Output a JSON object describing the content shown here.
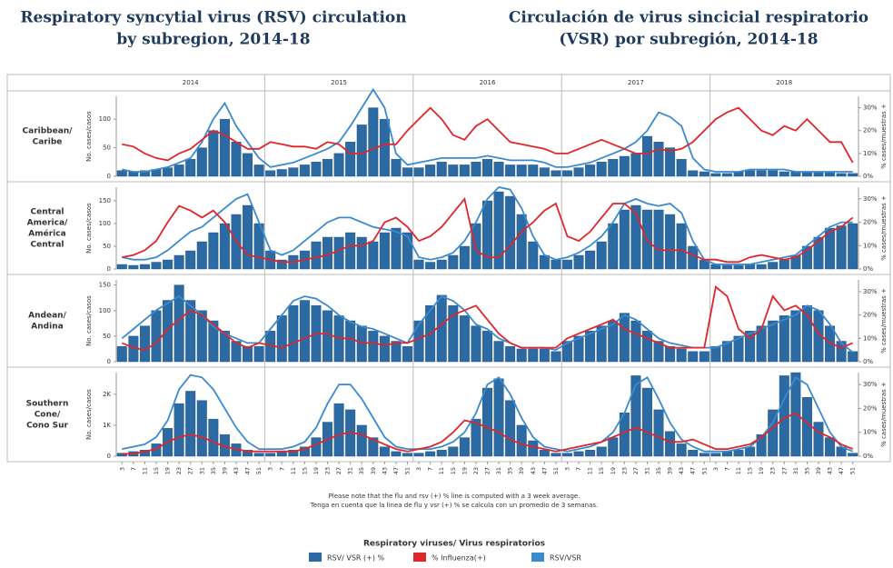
{
  "title_en": [
    "Respiratory syncytial virus (RSV) circulation",
    "by subregion, 2014-18"
  ],
  "title_es": [
    "Circulación de virus sincicial respiratorio",
    "(VSR) por subregión, 2014-18"
  ],
  "years": [
    "2014",
    "2015",
    "2016",
    "2017",
    "2018"
  ],
  "notes": [
    "Please note that the flu and rsv (+) % line is computed with a 3 week average.",
    "Tenga en cuenta que la linea de flu y vsr (+) % se calcula con un promedio de 3 semanas."
  ],
  "legend": {
    "title": "Respiratory viruses/ Virus respiratorios",
    "items": [
      {
        "name": "RSV/ VSR (+) %",
        "color": "#2b6aa3"
      },
      {
        "name": "% Influenza(+)",
        "color": "#e0262b"
      },
      {
        "name": "RSV/VSR",
        "color": "#3b8ad0"
      }
    ]
  },
  "categories": [
    "3",
    "7",
    "11",
    "15",
    "19",
    "23",
    "27",
    "31",
    "35",
    "39",
    "43",
    "47",
    "51",
    "3",
    "7",
    "11",
    "15",
    "19",
    "23",
    "27",
    "31",
    "35",
    "39",
    "43",
    "47",
    "51",
    "3",
    "7",
    "11",
    "15",
    "19",
    "23",
    "27",
    "31",
    "35",
    "39",
    "43",
    "47",
    "51",
    "3",
    "7",
    "11",
    "15",
    "19",
    "23",
    "27",
    "31",
    "35",
    "39",
    "43",
    "47",
    "51",
    "3",
    "7",
    "11",
    "15",
    "19",
    "23",
    "27",
    "31",
    "35",
    "39",
    "43",
    "47",
    "51"
  ],
  "chart_data": [
    {
      "type": "bar",
      "label": [
        "Caribbean/",
        "Caribe"
      ],
      "ylabel": "No. cases/casos",
      "y2label": "% cases/muestras +",
      "ylim": [
        0,
        140
      ],
      "yticks": [
        0,
        50,
        100
      ],
      "y2lim": [
        0,
        35
      ],
      "y2ticks": [
        {
          "value": 0,
          "label": "0%"
        },
        {
          "value": 10,
          "label": "10%"
        },
        {
          "value": 20,
          "label": "20%"
        },
        {
          "value": 30,
          "label": "30%"
        }
      ],
      "series": [
        {
          "color": "#2b6aa3",
          "values": [
            10,
            8,
            10,
            12,
            15,
            20,
            30,
            50,
            80,
            100,
            60,
            40,
            20,
            10,
            12,
            15,
            20,
            25,
            30,
            40,
            60,
            90,
            120,
            100,
            30,
            15,
            15,
            20,
            25,
            20,
            20,
            25,
            30,
            25,
            20,
            20,
            20,
            15,
            10,
            10,
            15,
            20,
            25,
            30,
            35,
            40,
            70,
            60,
            50,
            30,
            10,
            8,
            5,
            5,
            8,
            10,
            10,
            10,
            8,
            8,
            8,
            8,
            8,
            5,
            5
          ]
        },
        {
          "color": "#3b8ad0",
          "axis": "y2",
          "values": [
            3,
            2,
            2,
            3,
            4,
            6,
            8,
            15,
            25,
            32,
            22,
            15,
            8,
            4,
            5,
            6,
            8,
            10,
            12,
            15,
            22,
            30,
            38,
            30,
            10,
            5,
            6,
            7,
            8,
            8,
            8,
            8,
            9,
            8,
            7,
            7,
            7,
            6,
            4,
            4,
            5,
            6,
            8,
            10,
            12,
            15,
            20,
            28,
            26,
            22,
            8,
            3,
            2,
            2,
            2,
            3,
            3,
            3,
            3,
            2,
            2,
            2,
            2,
            2,
            2
          ]
        },
        {
          "color": "#e0262b",
          "axis": "y2",
          "values": [
            14,
            13,
            10,
            8,
            7,
            10,
            12,
            16,
            20,
            18,
            15,
            12,
            12,
            15,
            14,
            13,
            13,
            12,
            15,
            14,
            10,
            10,
            12,
            14,
            14,
            20,
            25,
            30,
            25,
            18,
            16,
            22,
            25,
            20,
            15,
            14,
            13,
            12,
            10,
            10,
            12,
            14,
            16,
            14,
            12,
            10,
            10,
            12,
            11,
            12,
            15,
            20,
            25,
            28,
            30,
            25,
            20,
            18,
            22,
            20,
            25,
            20,
            15,
            15,
            6
          ]
        }
      ]
    },
    {
      "type": "bar",
      "label": [
        "Central",
        "America/",
        "América",
        "Central"
      ],
      "ylabel": "No. cases/casos",
      "y2label": "% cases/muestras +",
      "ylim": [
        0,
        180
      ],
      "yticks": [
        0,
        50,
        100,
        150
      ],
      "y2lim": [
        0,
        35
      ],
      "y2ticks": [
        {
          "value": 0,
          "label": "0%"
        },
        {
          "value": 10,
          "label": "10%"
        },
        {
          "value": 20,
          "label": "20%"
        },
        {
          "value": 30,
          "label": "30%"
        }
      ],
      "series": [
        {
          "color": "#2b6aa3",
          "values": [
            10,
            8,
            10,
            15,
            20,
            30,
            40,
            60,
            80,
            100,
            120,
            140,
            100,
            40,
            20,
            30,
            40,
            60,
            70,
            70,
            80,
            70,
            60,
            80,
            90,
            80,
            20,
            15,
            20,
            30,
            50,
            100,
            150,
            170,
            160,
            120,
            60,
            30,
            20,
            20,
            30,
            40,
            60,
            100,
            130,
            140,
            130,
            130,
            120,
            100,
            50,
            20,
            10,
            8,
            8,
            10,
            10,
            15,
            20,
            30,
            50,
            70,
            90,
            95,
            100
          ]
        },
        {
          "color": "#3b8ad0",
          "axis": "y2",
          "values": [
            5,
            4,
            4,
            5,
            8,
            12,
            16,
            18,
            22,
            26,
            30,
            32,
            20,
            8,
            6,
            8,
            12,
            16,
            20,
            22,
            22,
            20,
            18,
            17,
            16,
            14,
            5,
            4,
            5,
            7,
            12,
            20,
            30,
            35,
            34,
            26,
            14,
            6,
            4,
            5,
            7,
            10,
            14,
            20,
            28,
            30,
            28,
            27,
            28,
            24,
            12,
            4,
            2,
            2,
            2,
            2,
            3,
            4,
            5,
            6,
            10,
            14,
            18,
            20,
            20
          ]
        },
        {
          "color": "#e0262b",
          "axis": "y2",
          "values": [
            5,
            6,
            8,
            12,
            20,
            27,
            25,
            22,
            25,
            20,
            12,
            6,
            5,
            4,
            3,
            3,
            4,
            5,
            6,
            8,
            10,
            10,
            12,
            20,
            22,
            18,
            12,
            14,
            18,
            24,
            30,
            8,
            5,
            5,
            10,
            16,
            20,
            25,
            28,
            14,
            12,
            16,
            22,
            28,
            28,
            24,
            12,
            8,
            8,
            8,
            6,
            4,
            4,
            3,
            3,
            5,
            6,
            5,
            4,
            5,
            8,
            12,
            16,
            18,
            22
          ]
        }
      ]
    },
    {
      "type": "bar",
      "label": [
        "Andean/",
        "Andina"
      ],
      "ylabel": "No. cases/casos",
      "y2label": "% cases/muestras +",
      "ylim": [
        0,
        160
      ],
      "yticks": [
        0,
        50,
        100,
        150
      ],
      "y2lim": [
        0,
        35
      ],
      "y2ticks": [
        {
          "value": 0,
          "label": "0%"
        },
        {
          "value": 10,
          "label": "10%"
        },
        {
          "value": 20,
          "label": "20%"
        },
        {
          "value": 30,
          "label": "30%"
        }
      ],
      "series": [
        {
          "color": "#2b6aa3",
          "values": [
            30,
            50,
            70,
            100,
            120,
            150,
            120,
            100,
            80,
            60,
            40,
            30,
            30,
            60,
            90,
            110,
            120,
            110,
            100,
            90,
            80,
            70,
            60,
            50,
            40,
            30,
            80,
            110,
            130,
            110,
            90,
            70,
            60,
            40,
            30,
            25,
            25,
            25,
            20,
            40,
            50,
            60,
            70,
            80,
            95,
            80,
            60,
            40,
            30,
            25,
            20,
            20,
            30,
            40,
            50,
            60,
            70,
            80,
            90,
            100,
            110,
            100,
            70,
            40,
            20
          ]
        },
        {
          "color": "#3b8ad0",
          "axis": "y2",
          "values": [
            10,
            14,
            18,
            22,
            25,
            28,
            24,
            20,
            15,
            12,
            10,
            8,
            8,
            14,
            20,
            26,
            28,
            27,
            24,
            20,
            17,
            15,
            14,
            12,
            10,
            8,
            16,
            22,
            28,
            26,
            22,
            16,
            14,
            10,
            8,
            6,
            6,
            6,
            5,
            8,
            10,
            12,
            14,
            16,
            20,
            18,
            14,
            10,
            8,
            7,
            6,
            6,
            6,
            8,
            10,
            12,
            14,
            16,
            18,
            20,
            24,
            22,
            16,
            8,
            4
          ]
        },
        {
          "color": "#e0262b",
          "axis": "y2",
          "values": [
            8,
            6,
            5,
            8,
            14,
            18,
            22,
            20,
            16,
            12,
            8,
            6,
            8,
            7,
            6,
            8,
            10,
            12,
            12,
            10,
            10,
            8,
            8,
            7,
            8,
            8,
            10,
            12,
            16,
            20,
            22,
            24,
            18,
            12,
            8,
            6,
            6,
            6,
            6,
            10,
            12,
            14,
            16,
            18,
            14,
            12,
            10,
            8,
            6,
            6,
            6,
            6,
            32,
            28,
            14,
            10,
            14,
            28,
            22,
            24,
            20,
            12,
            8,
            6,
            8
          ]
        }
      ]
    },
    {
      "type": "bar",
      "label": [
        "Southern",
        "Cone/",
        "Cono Sur"
      ],
      "ylabel": "No. cases/casos",
      "y2label": "% cases/muestras +",
      "ylim": [
        0,
        2700
      ],
      "yticks": [
        0,
        {
          "value": 1000,
          "label": "1K"
        },
        {
          "value": 2000,
          "label": "2K"
        }
      ],
      "y2lim": [
        0,
        35
      ],
      "y2ticks": [
        {
          "value": 0,
          "label": "0%"
        },
        {
          "value": 10,
          "label": "10%"
        },
        {
          "value": 20,
          "label": "20%"
        },
        {
          "value": 30,
          "label": "30%"
        }
      ],
      "series": [
        {
          "color": "#2b6aa3",
          "values": [
            100,
            150,
            200,
            400,
            900,
            1700,
            2100,
            1800,
            1200,
            700,
            400,
            200,
            100,
            100,
            150,
            200,
            300,
            600,
            1100,
            1700,
            1500,
            1000,
            600,
            300,
            150,
            100,
            100,
            150,
            200,
            300,
            600,
            1200,
            2200,
            2500,
            1800,
            1000,
            500,
            200,
            100,
            100,
            150,
            200,
            300,
            600,
            1400,
            2600,
            2200,
            1500,
            800,
            400,
            200,
            100,
            100,
            150,
            200,
            300,
            700,
            1500,
            2600,
            2700,
            1900,
            1100,
            600,
            300,
            100
          ]
        },
        {
          "color": "#3b8ad0",
          "axis": "y2",
          "values": [
            3,
            4,
            5,
            8,
            15,
            28,
            34,
            33,
            28,
            20,
            12,
            6,
            3,
            3,
            3,
            4,
            6,
            12,
            22,
            30,
            30,
            24,
            16,
            8,
            4,
            3,
            3,
            3,
            4,
            6,
            10,
            18,
            30,
            33,
            26,
            16,
            8,
            4,
            3,
            2,
            3,
            4,
            6,
            10,
            18,
            30,
            33,
            24,
            14,
            7,
            4,
            2,
            2,
            2,
            3,
            4,
            8,
            14,
            24,
            33,
            30,
            20,
            10,
            4,
            2
          ]
        },
        {
          "color": "#e0262b",
          "axis": "y2",
          "values": [
            1,
            1,
            2,
            3,
            6,
            8,
            9,
            8,
            6,
            4,
            3,
            2,
            2,
            2,
            2,
            2,
            3,
            5,
            7,
            9,
            10,
            9,
            7,
            5,
            3,
            2,
            3,
            4,
            6,
            10,
            15,
            14,
            12,
            10,
            7,
            5,
            4,
            3,
            2,
            3,
            4,
            5,
            6,
            8,
            10,
            12,
            10,
            8,
            6,
            6,
            7,
            5,
            3,
            3,
            4,
            5,
            8,
            12,
            16,
            18,
            14,
            10,
            8,
            5,
            3
          ]
        }
      ]
    }
  ]
}
